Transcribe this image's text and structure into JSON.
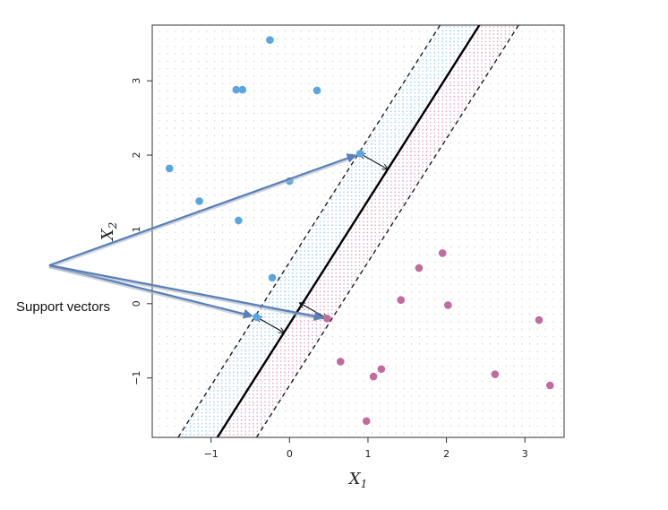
{
  "chart_data": {
    "type": "scatter",
    "xlabel": "X",
    "xlabel_subscript": "1",
    "ylabel": "X",
    "ylabel_subscript": "2",
    "xlim": [
      -1.75,
      3.5
    ],
    "ylim": [
      -1.8,
      3.75
    ],
    "xticks": [
      -1,
      0,
      1,
      2,
      3
    ],
    "yticks": [
      -1,
      0,
      1,
      2,
      3
    ],
    "series": [
      {
        "class": "blue",
        "color": "#5aa6e0",
        "points": [
          [
            -0.25,
            3.55
          ],
          [
            -0.68,
            2.88
          ],
          [
            -0.6,
            2.88
          ],
          [
            0.35,
            2.87
          ],
          [
            -1.53,
            1.82
          ],
          [
            -1.15,
            1.38
          ],
          [
            -0.65,
            1.12
          ],
          [
            0.0,
            1.65
          ],
          [
            0.9,
            2.02
          ],
          [
            -0.22,
            0.35
          ],
          [
            -0.42,
            -0.18
          ]
        ]
      },
      {
        "class": "purple",
        "color": "#c26b9e",
        "points": [
          [
            1.95,
            0.68
          ],
          [
            1.65,
            0.48
          ],
          [
            1.42,
            0.05
          ],
          [
            2.02,
            -0.02
          ],
          [
            3.18,
            -0.22
          ],
          [
            0.48,
            -0.2
          ],
          [
            0.65,
            -0.78
          ],
          [
            1.17,
            -0.88
          ],
          [
            1.07,
            -0.98
          ],
          [
            2.62,
            -0.95
          ],
          [
            3.32,
            -1.1
          ],
          [
            0.98,
            -1.58
          ]
        ]
      }
    ],
    "hyperplane": {
      "x0": -0.92,
      "y0": -1.8,
      "x1": 2.42,
      "y1": 3.75
    },
    "margin_upper": {
      "x0": -1.42,
      "y0": -1.8,
      "x1": 1.92,
      "y1": 3.75
    },
    "margin_lower": {
      "x0": -0.42,
      "y0": -1.8,
      "x1": 2.92,
      "y1": 3.75
    },
    "margin_arrows": [
      {
        "from": [
          0.9,
          2.02
        ],
        "to": [
          1.25,
          1.81
        ]
      },
      {
        "from": [
          -0.42,
          -0.18
        ],
        "to": [
          -0.07,
          -0.39
        ]
      },
      {
        "from": [
          0.48,
          -0.2
        ],
        "to": [
          0.13,
          0.01
        ]
      }
    ],
    "support_vectors": [
      [
        0.9,
        2.02
      ],
      [
        -0.42,
        -0.18
      ],
      [
        0.48,
        -0.2
      ]
    ],
    "annotation": {
      "text": "Support vectors"
    },
    "grid_dots": true
  }
}
